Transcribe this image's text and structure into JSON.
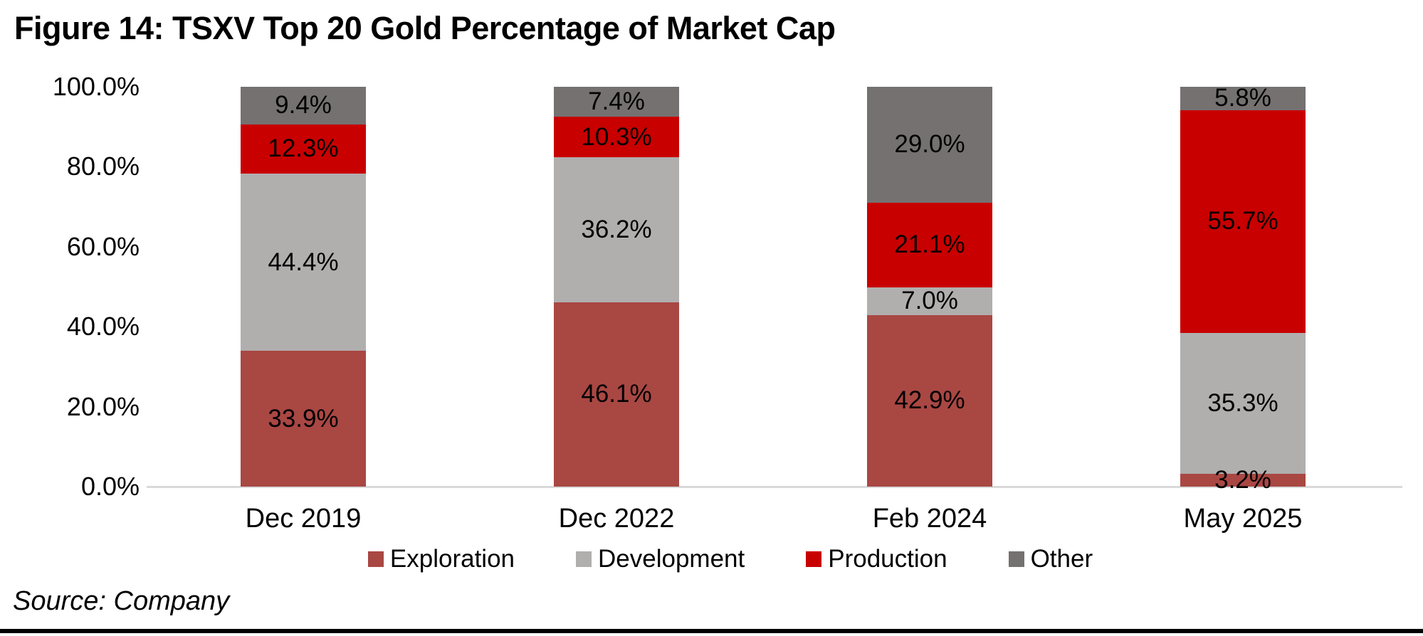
{
  "title": "Figure 14: TSXV Top 20 Gold Percentage of Market Cap",
  "source": "Source: Company",
  "chart_data": {
    "type": "bar",
    "stacked": true,
    "title": "Figure 14: TSXV Top 20 Gold Percentage of Market Cap",
    "categories": [
      "Dec 2019",
      "Dec 2022",
      "Feb 2024",
      "May 2025"
    ],
    "series": [
      {
        "name": "Exploration",
        "color": "#A94743",
        "values": [
          33.9,
          46.1,
          42.9,
          3.2
        ]
      },
      {
        "name": "Development",
        "color": "#B1AEAE",
        "values": [
          44.4,
          36.2,
          7.0,
          35.3
        ]
      },
      {
        "name": "Production",
        "color": "#C80000",
        "values": [
          12.3,
          10.3,
          21.1,
          55.7
        ]
      },
      {
        "name": "Other",
        "color": "#757171",
        "values": [
          9.4,
          7.4,
          29.0,
          5.8
        ]
      }
    ],
    "data_label_suffix": "%",
    "xlabel": "",
    "ylabel": "",
    "ylim": [
      0,
      100
    ],
    "yticks": [
      "0.0%",
      "20.0%",
      "40.0%",
      "60.0%",
      "80.0%",
      "100.0%"
    ],
    "ytick_step": 20,
    "grid": false,
    "legend_position": "bottom",
    "axis_line_color": "#D9D9D9"
  }
}
